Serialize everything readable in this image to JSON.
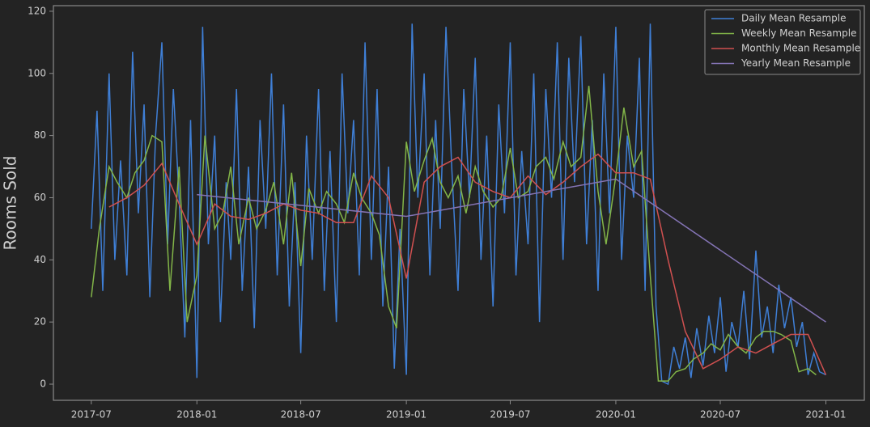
{
  "chart_data": {
    "type": "line",
    "ylabel": "Rooms Sold",
    "xlim": [
      "2017-04-26",
      "2021-03-09"
    ],
    "ylim": [
      -5.2,
      121.8
    ],
    "xticks": [
      "2017-07",
      "2018-01",
      "2018-07",
      "2019-01",
      "2019-07",
      "2020-01",
      "2020-07",
      "2021-01"
    ],
    "yticks": [
      0,
      20,
      40,
      60,
      80,
      100,
      120
    ],
    "legend": "upper right",
    "series": [
      {
        "name": "Daily Mean Resample",
        "color": "#3f7fd6",
        "x": [
          "2017-07-01",
          "2017-07-11",
          "2017-07-21",
          "2017-08-01",
          "2017-08-11",
          "2017-08-21",
          "2017-09-01",
          "2017-09-11",
          "2017-09-21",
          "2017-10-01",
          "2017-10-11",
          "2017-10-21",
          "2017-11-01",
          "2017-11-11",
          "2017-11-21",
          "2017-12-01",
          "2017-12-11",
          "2017-12-21",
          "2018-01-01",
          "2018-01-11",
          "2018-01-21",
          "2018-02-01",
          "2018-02-11",
          "2018-02-21",
          "2018-03-01",
          "2018-03-11",
          "2018-03-21",
          "2018-04-01",
          "2018-04-11",
          "2018-04-21",
          "2018-05-01",
          "2018-05-11",
          "2018-05-21",
          "2018-06-01",
          "2018-06-11",
          "2018-06-21",
          "2018-07-01",
          "2018-07-11",
          "2018-07-21",
          "2018-08-01",
          "2018-08-11",
          "2018-08-21",
          "2018-09-01",
          "2018-09-11",
          "2018-09-21",
          "2018-10-01",
          "2018-10-11",
          "2018-10-21",
          "2018-11-01",
          "2018-11-11",
          "2018-11-21",
          "2018-12-01",
          "2018-12-11",
          "2018-12-21",
          "2019-01-01",
          "2019-01-11",
          "2019-01-21",
          "2019-02-01",
          "2019-02-11",
          "2019-02-21",
          "2019-03-01",
          "2019-03-11",
          "2019-03-21",
          "2019-04-01",
          "2019-04-11",
          "2019-04-21",
          "2019-05-01",
          "2019-05-11",
          "2019-05-21",
          "2019-06-01",
          "2019-06-11",
          "2019-06-21",
          "2019-07-01",
          "2019-07-11",
          "2019-07-21",
          "2019-08-01",
          "2019-08-11",
          "2019-08-21",
          "2019-09-01",
          "2019-09-11",
          "2019-09-21",
          "2019-10-01",
          "2019-10-11",
          "2019-10-21",
          "2019-11-01",
          "2019-11-11",
          "2019-11-21",
          "2019-12-01",
          "2019-12-11",
          "2019-12-21",
          "2020-01-01",
          "2020-01-11",
          "2020-01-21",
          "2020-02-01",
          "2020-02-11",
          "2020-02-21",
          "2020-03-01",
          "2020-03-11",
          "2020-03-21",
          "2020-04-01",
          "2020-04-11",
          "2020-04-21",
          "2020-05-01",
          "2020-05-11",
          "2020-05-21",
          "2020-06-01",
          "2020-06-11",
          "2020-06-21",
          "2020-07-01",
          "2020-07-11",
          "2020-07-21",
          "2020-08-01",
          "2020-08-11",
          "2020-08-21",
          "2020-09-01",
          "2020-09-11",
          "2020-09-21",
          "2020-10-01",
          "2020-10-11",
          "2020-10-21",
          "2020-11-01",
          "2020-11-11",
          "2020-11-21",
          "2020-12-01",
          "2020-12-11",
          "2020-12-21",
          "2021-01-01"
        ],
        "values": [
          50,
          88,
          30,
          100,
          40,
          72,
          35,
          107,
          55,
          90,
          28,
          80,
          110,
          45,
          95,
          60,
          15,
          85,
          2,
          115,
          45,
          80,
          20,
          65,
          40,
          95,
          30,
          70,
          18,
          85,
          50,
          100,
          35,
          90,
          25,
          65,
          10,
          80,
          40,
          95,
          30,
          75,
          20,
          100,
          55,
          85,
          35,
          110,
          40,
          95,
          25,
          70,
          5,
          50,
          3,
          116,
          60,
          100,
          35,
          85,
          50,
          115,
          70,
          30,
          95,
          60,
          105,
          40,
          80,
          25,
          90,
          55,
          110,
          35,
          75,
          45,
          100,
          20,
          95,
          60,
          110,
          40,
          105,
          65,
          112,
          45,
          85,
          30,
          100,
          55,
          115,
          40,
          80,
          60,
          105,
          30,
          116,
          25,
          1,
          0,
          12,
          5,
          15,
          2,
          18,
          6,
          22,
          10,
          28,
          4,
          20,
          12,
          30,
          8,
          43,
          15,
          25,
          10,
          32,
          18,
          28,
          12,
          20,
          3,
          10,
          4,
          3
        ]
      },
      {
        "name": "Weekly Mean Resample",
        "color": "#82b548",
        "x": [
          "2017-07-01",
          "2017-07-15",
          "2017-08-01",
          "2017-08-15",
          "2017-09-01",
          "2017-09-15",
          "2017-10-01",
          "2017-10-15",
          "2017-11-01",
          "2017-11-15",
          "2017-12-01",
          "2017-12-15",
          "2018-01-01",
          "2018-01-15",
          "2018-02-01",
          "2018-02-15",
          "2018-03-01",
          "2018-03-15",
          "2018-04-01",
          "2018-04-15",
          "2018-05-01",
          "2018-05-15",
          "2018-06-01",
          "2018-06-15",
          "2018-07-01",
          "2018-07-15",
          "2018-08-01",
          "2018-08-15",
          "2018-09-01",
          "2018-09-15",
          "2018-10-01",
          "2018-10-15",
          "2018-11-01",
          "2018-11-15",
          "2018-12-01",
          "2018-12-15",
          "2019-01-01",
          "2019-01-15",
          "2019-02-01",
          "2019-02-15",
          "2019-03-01",
          "2019-03-15",
          "2019-04-01",
          "2019-04-15",
          "2019-05-01",
          "2019-05-15",
          "2019-06-01",
          "2019-06-15",
          "2019-07-01",
          "2019-07-15",
          "2019-08-01",
          "2019-08-15",
          "2019-09-01",
          "2019-09-15",
          "2019-10-01",
          "2019-10-15",
          "2019-11-01",
          "2019-11-15",
          "2019-12-01",
          "2019-12-15",
          "2020-01-01",
          "2020-01-15",
          "2020-02-01",
          "2020-02-15",
          "2020-03-01",
          "2020-03-15",
          "2020-04-01",
          "2020-04-15",
          "2020-05-01",
          "2020-05-15",
          "2020-06-01",
          "2020-06-15",
          "2020-07-01",
          "2020-07-15",
          "2020-08-01",
          "2020-08-15",
          "2020-09-01",
          "2020-09-15",
          "2020-10-01",
          "2020-10-15",
          "2020-11-01",
          "2020-11-15",
          "2020-12-01",
          "2020-12-15"
        ],
        "values": [
          28,
          50,
          70,
          65,
          60,
          68,
          72,
          80,
          78,
          30,
          70,
          20,
          35,
          80,
          50,
          55,
          70,
          45,
          60,
          50,
          56,
          65,
          45,
          68,
          38,
          63,
          55,
          62,
          58,
          52,
          68,
          60,
          55,
          48,
          25,
          18,
          78,
          62,
          72,
          79,
          65,
          60,
          67,
          55,
          70,
          62,
          57,
          60,
          76,
          60,
          62,
          70,
          73,
          66,
          78,
          70,
          73,
          96,
          62,
          45,
          67,
          89,
          70,
          75,
          35,
          1,
          1,
          4,
          5,
          8,
          10,
          13,
          11,
          16,
          12,
          10,
          15,
          17,
          17,
          16,
          14,
          4,
          5,
          3
        ]
      },
      {
        "name": "Monthly Mean Resample",
        "color": "#d05050",
        "x": [
          "2017-08",
          "2017-09",
          "2017-10",
          "2017-11",
          "2017-12",
          "2018-01",
          "2018-02",
          "2018-03",
          "2018-04",
          "2018-05",
          "2018-06",
          "2018-07",
          "2018-08",
          "2018-09",
          "2018-10",
          "2018-11",
          "2018-12",
          "2019-01",
          "2019-02",
          "2019-03",
          "2019-04",
          "2019-05",
          "2019-06",
          "2019-07",
          "2019-08",
          "2019-09",
          "2019-10",
          "2019-11",
          "2019-12",
          "2020-01",
          "2020-02",
          "2020-03",
          "2020-04",
          "2020-05",
          "2020-06",
          "2020-07",
          "2020-08",
          "2020-09",
          "2020-10",
          "2020-11",
          "2020-12",
          "2021-01"
        ],
        "values": [
          57,
          60,
          64,
          71,
          58,
          45,
          58,
          54,
          53,
          55,
          58,
          56,
          55,
          52,
          52,
          67,
          60,
          34,
          65,
          70,
          73,
          65,
          62,
          60,
          67,
          61,
          65,
          70,
          74,
          68,
          68,
          66,
          40,
          17,
          5,
          8,
          12,
          10,
          13,
          16,
          16,
          3
        ]
      },
      {
        "name": "Yearly Mean Resample",
        "color": "#8474b5",
        "x": [
          "2018-01",
          "2019-01",
          "2020-01",
          "2021-01"
        ],
        "values": [
          61,
          54,
          66,
          20
        ]
      }
    ]
  }
}
